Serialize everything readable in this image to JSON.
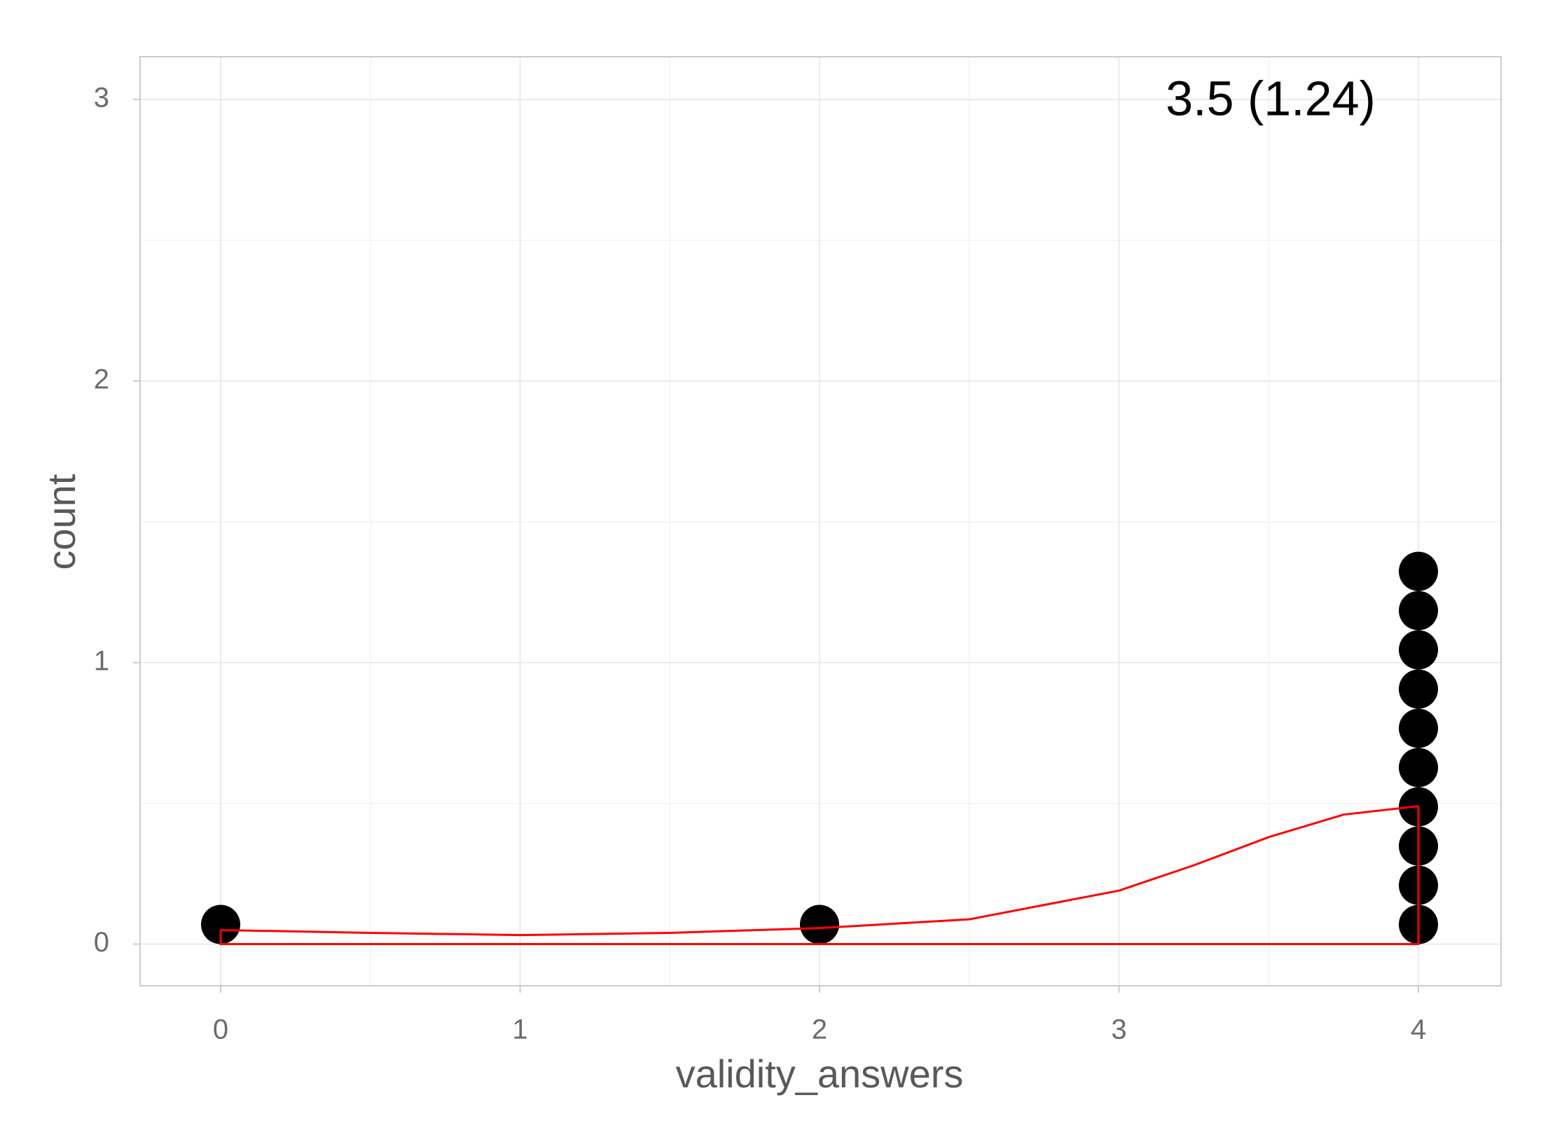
{
  "chart_data": {
    "type": "dotplot",
    "x_label": "validity_answers",
    "y_label": "count",
    "annotation": "3.5 (1.24)",
    "points": [
      0,
      2,
      4,
      4,
      4,
      4,
      4,
      4,
      4,
      4,
      4,
      4
    ],
    "color": "#000000",
    "density": {
      "x": [
        0,
        0.5,
        1,
        1.5,
        2,
        2.5,
        3,
        3.25,
        3.5,
        3.75,
        4
      ],
      "y": [
        0.05,
        0.04,
        0.032,
        0.04,
        0.057,
        0.088,
        0.19,
        0.28,
        0.38,
        0.46,
        0.49
      ],
      "color": "#ff0000"
    },
    "xlim": [
      -0.269,
      4.276
    ],
    "ylim": [
      -0.148,
      3.152
    ],
    "xticks": [
      0,
      1,
      2,
      3,
      4
    ],
    "yticks": [
      0,
      1,
      2,
      3
    ],
    "grid": true
  }
}
